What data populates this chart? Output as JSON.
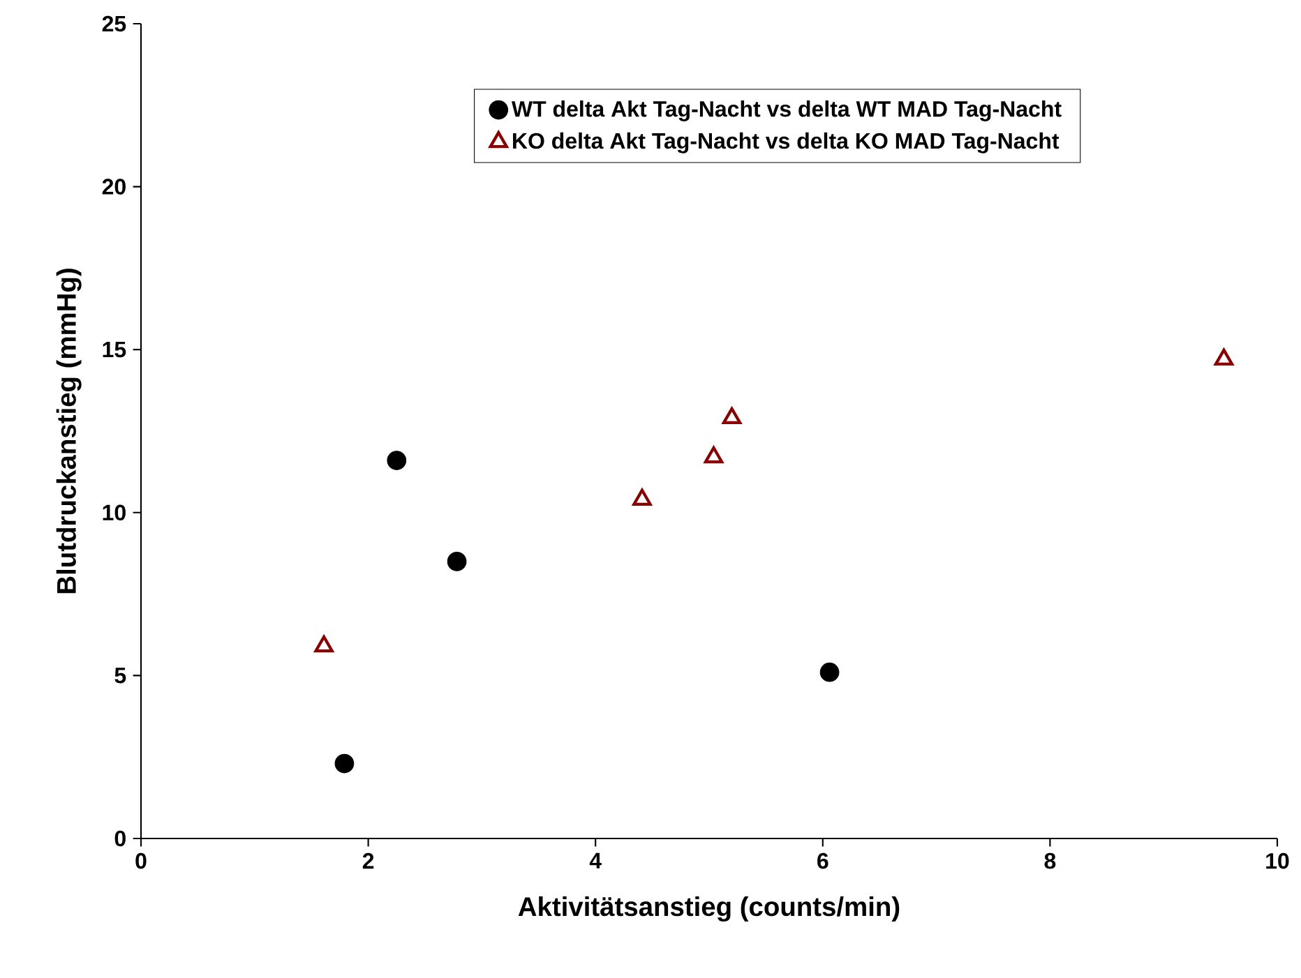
{
  "chart_data": {
    "type": "scatter",
    "xlabel": "Aktivitätsanstieg (counts/min)",
    "ylabel": "Blutdruckanstieg (mmHg)",
    "xlim": [
      0,
      10
    ],
    "ylim": [
      0,
      25
    ],
    "xticks": [
      0,
      2,
      4,
      6,
      8,
      10
    ],
    "yticks": [
      0,
      5,
      10,
      15,
      20,
      25
    ],
    "grid": false,
    "legend": "top",
    "series": [
      {
        "name": "WT delta Akt Tag-Nacht vs delta WT MAD Tag-Nacht",
        "color": "#000000",
        "marker": "circle",
        "x": [
          1.79,
          2.25,
          2.78,
          6.06
        ],
        "values": [
          2.3,
          11.6,
          8.5,
          5.1
        ]
      },
      {
        "name": "KO delta Akt Tag-Nacht vs delta KO MAD Tag-Nacht",
        "color": "#8b0000",
        "marker": "triangle",
        "x": [
          1.61,
          4.41,
          5.04,
          5.2,
          9.53
        ],
        "values": [
          5.9,
          10.4,
          11.7,
          12.9,
          14.7
        ]
      }
    ]
  }
}
